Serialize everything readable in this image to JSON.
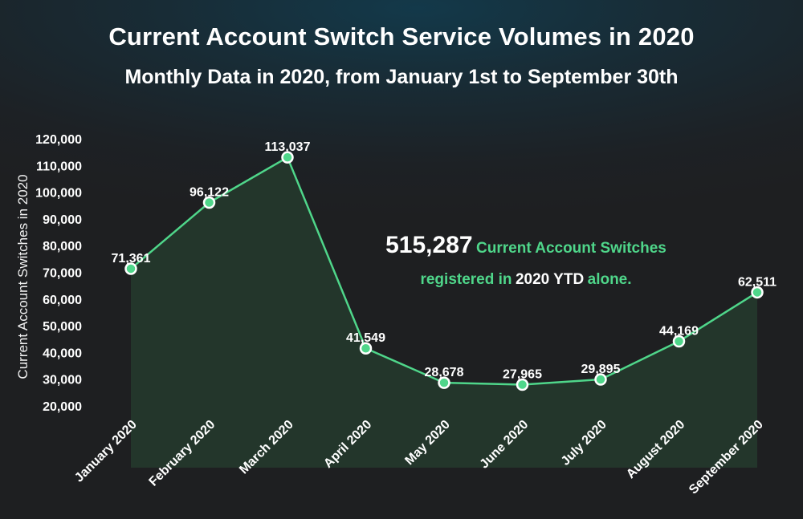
{
  "chart_data": {
    "type": "area",
    "title": "Current Account Switch Service Volumes in 2020",
    "subtitle": "Monthly Data in 2020, from January 1st to September 30th",
    "ylabel": "Current Account Switches in 2020",
    "xlabel": "",
    "categories": [
      "January 2020",
      "February 2020",
      "March 2020",
      "April 2020",
      "May 2020",
      "June 2020",
      "July 2020",
      "August 2020",
      "September 2020"
    ],
    "values": [
      71361,
      96122,
      113037,
      41549,
      28678,
      27965,
      29895,
      44169,
      62511
    ],
    "data_labels": [
      "71,361",
      "96,122",
      "113,037",
      "41,549",
      "28,678",
      "27,965",
      "29,895",
      "44,169",
      "62,511"
    ],
    "yticks": [
      "20,000",
      "30,000",
      "40,000",
      "50,000",
      "60,000",
      "70,000",
      "80,000",
      "90,000",
      "100,000",
      "110,000",
      "120,000"
    ],
    "ytick_values": [
      20000,
      30000,
      40000,
      50000,
      60000,
      70000,
      80000,
      90000,
      100000,
      110000,
      120000
    ],
    "ylim": [
      20000,
      120000
    ],
    "grid": false,
    "legend": "none",
    "colors": {
      "line": "#4fd68a",
      "marker_fill": "#4fd68a",
      "marker_stroke": "#ffffff",
      "area_fill": "#24382c"
    }
  },
  "callout": {
    "total": "515,287",
    "text1": "Current Account Switches",
    "text2": "registered in",
    "text3": "2020 YTD",
    "text4": "alone."
  }
}
